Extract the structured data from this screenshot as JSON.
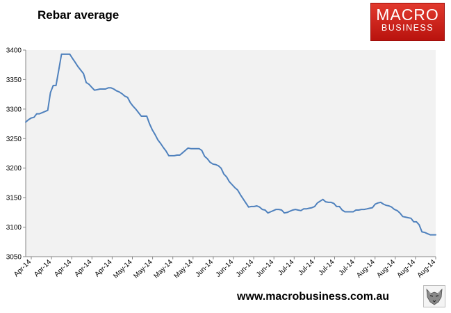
{
  "brand": {
    "logo_line1": "MACRO",
    "logo_line2": "BUSINESS",
    "logo_color": "#c8161d",
    "website": "www.macrobusiness.com.au"
  },
  "chart_data": {
    "type": "line",
    "title": "Rebar average",
    "xlabel": "",
    "ylabel": "",
    "ylim": [
      3050,
      3400
    ],
    "yticks": [
      3050,
      3100,
      3150,
      3200,
      3250,
      3300,
      3350,
      3400
    ],
    "xtick_labels": [
      "Apr-14",
      "Apr-14",
      "Apr-14",
      "Apr-14",
      "Apr-14",
      "May-14",
      "May-14",
      "May-14",
      "May-14",
      "Jun-14",
      "Jun-14",
      "Jun-14",
      "Jun-14",
      "Jul-14",
      "Jul-14",
      "Jul-14",
      "Jul-14",
      "Aug-14",
      "Aug-14",
      "Aug-14",
      "Aug-14"
    ],
    "grid": false,
    "legend": "none",
    "line_color": "#4f81bd",
    "plot_background": "#f2f2f2",
    "series": [
      {
        "values": [
          3278,
          3282,
          3285,
          3286,
          3292,
          3292,
          3294,
          3296,
          3298,
          3328,
          3340,
          3340,
          3366,
          3393,
          3393,
          3393,
          3393,
          3386,
          3379,
          3372,
          3366,
          3360,
          3345,
          3342,
          3337,
          3332,
          3333,
          3334,
          3334,
          3334,
          3336,
          3336,
          3334,
          3331,
          3329,
          3326,
          3322,
          3320,
          3311,
          3305,
          3300,
          3294,
          3288,
          3288,
          3288,
          3275,
          3265,
          3257,
          3248,
          3242,
          3235,
          3229,
          3221,
          3221,
          3221,
          3222,
          3222,
          3226,
          3230,
          3234,
          3233,
          3233,
          3233,
          3233,
          3230,
          3220,
          3216,
          3210,
          3207,
          3206,
          3204,
          3200,
          3190,
          3185,
          3177,
          3172,
          3167,
          3163,
          3155,
          3148,
          3141,
          3134,
          3135,
          3135,
          3136,
          3134,
          3130,
          3129,
          3124,
          3126,
          3128,
          3130,
          3130,
          3129,
          3124,
          3125,
          3127,
          3129,
          3130,
          3129,
          3128,
          3131,
          3131,
          3132,
          3133,
          3135,
          3141,
          3144,
          3147,
          3143,
          3142,
          3142,
          3140,
          3135,
          3135,
          3129,
          3126,
          3126,
          3126,
          3126,
          3129,
          3129,
          3130,
          3130,
          3131,
          3132,
          3133,
          3139,
          3141,
          3142,
          3139,
          3137,
          3136,
          3134,
          3130,
          3128,
          3124,
          3118,
          3117,
          3116,
          3115,
          3109,
          3109,
          3104,
          3092,
          3091,
          3089,
          3087,
          3087,
          3087
        ]
      }
    ]
  }
}
